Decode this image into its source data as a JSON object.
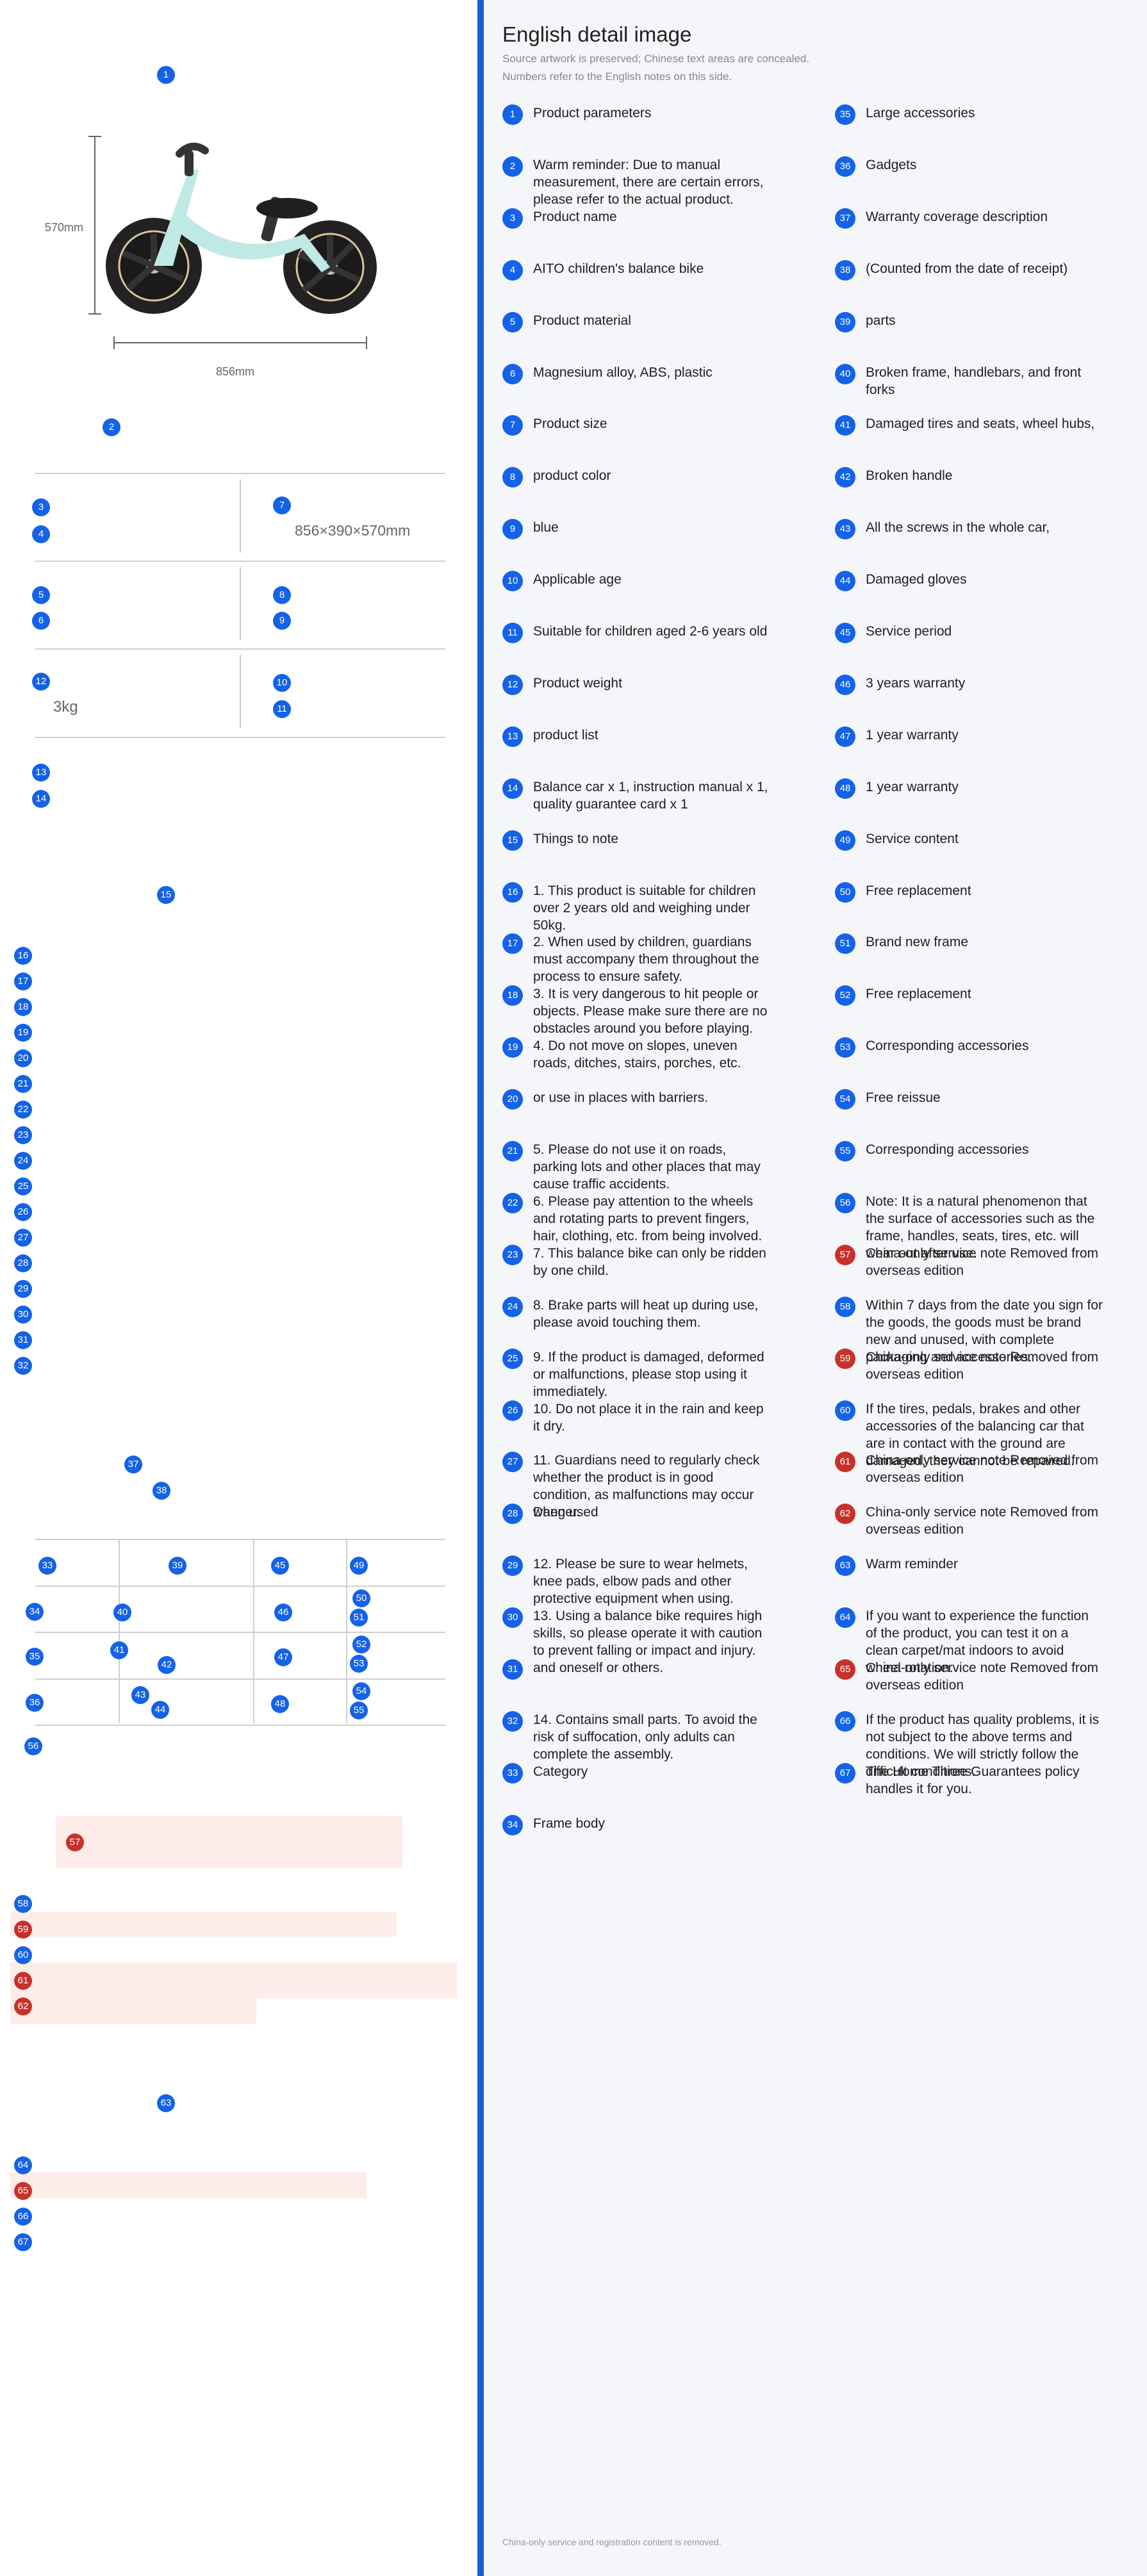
{
  "left": {
    "height_label": "570mm",
    "length_label": "856mm",
    "size_value": "856×390×570mm",
    "weight_value": "3kg",
    "markers": [
      "1",
      "2",
      "3",
      "4",
      "5",
      "6",
      "7",
      "8",
      "9",
      "10",
      "11",
      "12",
      "13",
      "14",
      "15",
      "16",
      "17",
      "18",
      "19",
      "20",
      "21",
      "22",
      "23",
      "24",
      "25",
      "26",
      "27",
      "28",
      "29",
      "30",
      "31",
      "32",
      "33",
      "34",
      "35",
      "36",
      "37",
      "38",
      "39",
      "40",
      "41",
      "42",
      "43",
      "44",
      "45",
      "46",
      "47",
      "48",
      "49",
      "50",
      "51",
      "52",
      "53",
      "54",
      "55",
      "56",
      "57",
      "58",
      "59",
      "60",
      "61",
      "62",
      "63",
      "64",
      "65",
      "66",
      "67"
    ]
  },
  "right": {
    "title": "English detail image",
    "subtitle_1": "Source artwork is preserved; Chinese text areas are concealed.",
    "subtitle_2": "Numbers refer to the English notes on this side.",
    "footer": "China-only service and registration content is removed.",
    "notes_col1": [
      {
        "n": "1",
        "text": "Product parameters",
        "red": false
      },
      {
        "n": "2",
        "text": "Warm reminder: Due to manual measurement, there are certain errors, please refer to the actual product.",
        "red": false
      },
      {
        "n": "3",
        "text": "Product name",
        "red": false
      },
      {
        "n": "4",
        "text": "AITO children's balance bike",
        "red": false
      },
      {
        "n": "5",
        "text": "Product material",
        "red": false
      },
      {
        "n": "6",
        "text": "Magnesium alloy, ABS, plastic",
        "red": false
      },
      {
        "n": "7",
        "text": "Product size",
        "red": false
      },
      {
        "n": "8",
        "text": "product color",
        "red": false
      },
      {
        "n": "9",
        "text": "blue",
        "red": false
      },
      {
        "n": "10",
        "text": "Applicable age",
        "red": false
      },
      {
        "n": "11",
        "text": "Suitable for children aged 2-6 years old",
        "red": false
      },
      {
        "n": "12",
        "text": "Product weight",
        "red": false
      },
      {
        "n": "13",
        "text": "product list",
        "red": false
      },
      {
        "n": "14",
        "text": "Balance car x 1, instruction manual x 1, quality guarantee card x 1",
        "red": false
      },
      {
        "n": "15",
        "text": "Things to note",
        "red": false
      },
      {
        "n": "16",
        "text": "1. This product is suitable for children over 2 years old and weighing under 50kg.",
        "red": false
      },
      {
        "n": "17",
        "text": "2. When used by children, guardians must accompany them throughout the process to ensure safety.",
        "red": false
      },
      {
        "n": "18",
        "text": "3. It is very dangerous to hit people or objects. Please make sure there are no obstacles around you before playing.",
        "red": false
      },
      {
        "n": "19",
        "text": "4. Do not move on slopes, uneven roads, ditches, stairs, porches, etc.",
        "red": false
      },
      {
        "n": "20",
        "text": "or use in places with barriers.",
        "red": false
      },
      {
        "n": "21",
        "text": "5. Please do not use it on roads, parking lots and other places that may cause traffic accidents.",
        "red": false
      },
      {
        "n": "22",
        "text": "6. Please pay attention to the wheels and rotating parts to prevent fingers, hair, clothing, etc. from being involved.",
        "red": false
      },
      {
        "n": "23",
        "text": "7. This balance bike can only be ridden by one child.",
        "red": false
      },
      {
        "n": "24",
        "text": "8. Brake parts will heat up during use, please avoid touching them.",
        "red": false
      },
      {
        "n": "25",
        "text": "9. If the product is damaged, deformed or malfunctions, please stop using it immediately.",
        "red": false
      },
      {
        "n": "26",
        "text": "10. Do not place it in the rain and keep it dry.",
        "red": false
      },
      {
        "n": "27",
        "text": "11. Guardians need to regularly check whether the product is in good condition, as malfunctions may occur when used",
        "red": false
      },
      {
        "n": "28",
        "text": "Danger.",
        "red": false
      },
      {
        "n": "29",
        "text": "12. Please be sure to wear helmets, knee pads, elbow pads and other protective equipment when using.",
        "red": false
      },
      {
        "n": "30",
        "text": "13. Using a balance bike requires high skills, so please operate it with caution to prevent falling or impact and injury.",
        "red": false
      },
      {
        "n": "31",
        "text": "and oneself or others.",
        "red": false
      },
      {
        "n": "32",
        "text": "14. Contains small parts. To avoid the risk of suffocation, only adults can complete the assembly.",
        "red": false
      },
      {
        "n": "33",
        "text": "Category",
        "red": false
      },
      {
        "n": "34",
        "text": "Frame body",
        "red": false
      }
    ],
    "notes_col2": [
      {
        "n": "35",
        "text": "Large accessories",
        "red": false
      },
      {
        "n": "36",
        "text": "Gadgets",
        "red": false
      },
      {
        "n": "37",
        "text": "Warranty coverage description",
        "red": false
      },
      {
        "n": "38",
        "text": "(Counted from the date of receipt)",
        "red": false
      },
      {
        "n": "39",
        "text": "parts",
        "red": false
      },
      {
        "n": "40",
        "text": "Broken frame, handlebars, and front forks",
        "red": false
      },
      {
        "n": "41",
        "text": "Damaged tires and seats, wheel hubs,",
        "red": false
      },
      {
        "n": "42",
        "text": "Broken handle",
        "red": false
      },
      {
        "n": "43",
        "text": "All the screws in the whole car,",
        "red": false
      },
      {
        "n": "44",
        "text": "Damaged gloves",
        "red": false
      },
      {
        "n": "45",
        "text": "Service period",
        "red": false
      },
      {
        "n": "46",
        "text": "3 years warranty",
        "red": false
      },
      {
        "n": "47",
        "text": "1 year warranty",
        "red": false
      },
      {
        "n": "48",
        "text": "1 year warranty",
        "red": false
      },
      {
        "n": "49",
        "text": "Service content",
        "red": false
      },
      {
        "n": "50",
        "text": "Free replacement",
        "red": false
      },
      {
        "n": "51",
        "text": "Brand new frame",
        "red": false
      },
      {
        "n": "52",
        "text": "Free replacement",
        "red": false
      },
      {
        "n": "53",
        "text": "Corresponding accessories",
        "red": false
      },
      {
        "n": "54",
        "text": "Free reissue",
        "red": false
      },
      {
        "n": "55",
        "text": "Corresponding accessories",
        "red": false
      },
      {
        "n": "56",
        "text": "Note: It is a natural phenomenon that the surface of accessories such as the frame, handles, seats, tires, etc. will wear out after use.",
        "red": false
      },
      {
        "n": "57",
        "text": "China-only service note Removed from overseas edition",
        "red": true
      },
      {
        "n": "58",
        "text": "Within 7 days from the date you sign for the goods, the goods must be brand new and unused, with complete packaging and accessories.",
        "red": false
      },
      {
        "n": "59",
        "text": "China-only service note Removed from overseas edition",
        "red": true
      },
      {
        "n": "60",
        "text": "If the tires, pedals, brakes and other accessories of the balancing car that are in contact with the ground are damaged, they cannot be repaired.",
        "red": false
      },
      {
        "n": "61",
        "text": "China-only service note Removed from overseas edition",
        "red": true
      },
      {
        "n": "62",
        "text": "China-only service note Removed from overseas edition",
        "red": true
      },
      {
        "n": "63",
        "text": "Warm reminder",
        "red": false
      },
      {
        "n": "64",
        "text": "If you want to experience the function of the product, you can test it on a clean carpet/mat indoors to avoid wheel rotation.",
        "red": false
      },
      {
        "n": "65",
        "text": "China-only service note Removed from overseas edition",
        "red": true
      },
      {
        "n": "66",
        "text": "If the product has quality problems, it is not subject to the above terms and conditions. We will strictly follow the difficult conditions.",
        "red": false
      },
      {
        "n": "67",
        "text": "The Home Three Guarantees policy handles it for you.",
        "red": false
      }
    ]
  }
}
